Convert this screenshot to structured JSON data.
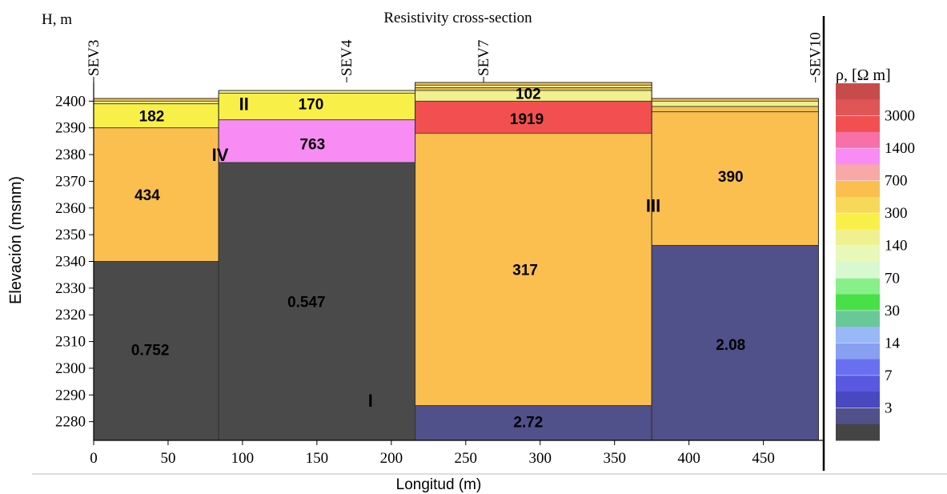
{
  "chart_data": {
    "type": "heatmap",
    "title": "Resistivity cross-section",
    "xlabel": "Longitud (m)",
    "ylabel": "Elevación (msnm)",
    "y_corner_label": "H, m",
    "xlim": [
      0,
      490
    ],
    "ylim": [
      2273,
      2407
    ],
    "x_ticks": [
      0,
      50,
      100,
      150,
      200,
      250,
      300,
      350,
      400,
      450
    ],
    "y_ticks": [
      2280,
      2290,
      2300,
      2310,
      2320,
      2330,
      2340,
      2350,
      2360,
      2370,
      2380,
      2390,
      2400
    ],
    "soundings": [
      {
        "name": "SEV3",
        "x": 0
      },
      {
        "name": "SEV4",
        "x": 170
      },
      {
        "name": "SEV7",
        "x": 262
      },
      {
        "name": "SEV10",
        "x": 485
      }
    ],
    "columns": [
      {
        "x_from": 0,
        "x_to": 84,
        "surface": 2401,
        "layers": [
          {
            "top": 2401,
            "bottom": 2400,
            "color": "#f4c050"
          },
          {
            "top": 2400,
            "bottom": 2399,
            "color": "#f0f090"
          },
          {
            "top": 2399,
            "bottom": 2390,
            "color": "#f8f048",
            "label": "182",
            "label_x": 39,
            "label_y": 2394.5
          },
          {
            "top": 2390,
            "bottom": 2340,
            "color": "#fbbf50",
            "label": "434",
            "label_x": 36,
            "label_y": 2365
          },
          {
            "top": 2340,
            "bottom": 2273,
            "color": "#4a4a4a",
            "label": "0.752",
            "label_x": 38,
            "label_y": 2307
          }
        ]
      },
      {
        "x_from": 84,
        "x_to": 216,
        "surface": 2404,
        "layers": [
          {
            "top": 2404,
            "bottom": 2403,
            "color": "#f0f090"
          },
          {
            "top": 2403,
            "bottom": 2393,
            "color": "#f8f048",
            "label": "170",
            "label_x": 146,
            "label_y": 2399
          },
          {
            "top": 2393,
            "bottom": 2377,
            "color": "#f88cf4",
            "label": "763",
            "label_x": 147,
            "label_y": 2384
          },
          {
            "top": 2377,
            "bottom": 2273,
            "color": "#4a4a4a",
            "label": "0.547",
            "label_x": 143,
            "label_y": 2325
          }
        ]
      },
      {
        "x_from": 216,
        "x_to": 375,
        "surface": 2407,
        "layers": [
          {
            "top": 2407,
            "bottom": 2406,
            "color": "#f4c050"
          },
          {
            "top": 2406,
            "bottom": 2405,
            "color": "#f0f090"
          },
          {
            "top": 2405,
            "bottom": 2404,
            "color": "#f4c050"
          },
          {
            "top": 2404,
            "bottom": 2400,
            "color": "#f0f090",
            "label": "102",
            "label_x": 292,
            "label_y": 2403
          },
          {
            "top": 2400,
            "bottom": 2388,
            "color": "#f25050",
            "label": "1919",
            "label_x": 291,
            "label_y": 2393.5
          },
          {
            "top": 2388,
            "bottom": 2286,
            "color": "#fbbf50",
            "label": "317",
            "label_x": 290,
            "label_y": 2337
          },
          {
            "top": 2286,
            "bottom": 2273,
            "color": "#50508a",
            "label": "2.72",
            "label_x": 292,
            "label_y": 2280
          }
        ]
      },
      {
        "x_from": 375,
        "x_to": 487,
        "surface": 2401,
        "layers": [
          {
            "top": 2401,
            "bottom": 2400,
            "color": "#f4c050"
          },
          {
            "top": 2400,
            "bottom": 2398,
            "color": "#f0f090"
          },
          {
            "top": 2398,
            "bottom": 2396,
            "color": "#f4c050"
          },
          {
            "top": 2396,
            "bottom": 2346,
            "color": "#fbbf50",
            "label": "390",
            "label_x": 428,
            "label_y": 2372
          },
          {
            "top": 2346,
            "bottom": 2273,
            "color": "#50508a",
            "label": "2.08",
            "label_x": 428,
            "label_y": 2309
          }
        ]
      }
    ],
    "units": [
      {
        "label": "I",
        "x": 186,
        "y": 2288
      },
      {
        "label": "II",
        "x": 101,
        "y": 2399
      },
      {
        "label": "III",
        "x": 376,
        "y": 2361
      },
      {
        "label": "IV",
        "x": 85,
        "y": 2380
      }
    ],
    "legend": {
      "title": "ρ, [Ω m]",
      "placement": "right",
      "swatches": [
        "#c84b4b",
        "#e05656",
        "#f25050",
        "#f870a8",
        "#f88cf4",
        "#f8a8a8",
        "#fbbf50",
        "#f8d858",
        "#f8f048",
        "#f0f090",
        "#e8f8b8",
        "#d8f8d0",
        "#88f088",
        "#48e048",
        "#68c898",
        "#98b8f8",
        "#88a0f0",
        "#6870f0",
        "#5858e0",
        "#4848c0",
        "#50508a",
        "#444444"
      ],
      "tick_labels": [
        "3000",
        "1400",
        "700",
        "300",
        "140",
        "70",
        "30",
        "14",
        "7",
        "3"
      ]
    }
  }
}
